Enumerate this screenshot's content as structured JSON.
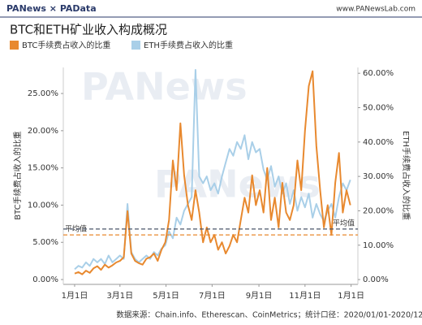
{
  "header": {
    "logo": "PANews × PAData",
    "site": "www.PANewsLab.com"
  },
  "chart_data": {
    "type": "line",
    "title": "BTC和ETH矿业收入构成概况",
    "watermark": "PANews",
    "y_label": "BTC手续费占收入的比重",
    "y2_label": "ETH手续费占收入的比重",
    "source": "数据来源：Chain.info、Etherescan、CoinMetrics；统计口径：2020/01/01-2020/12/31",
    "xlim": [
      -15,
      375
    ],
    "xticks": [
      {
        "value": 0,
        "label": "1月1日"
      },
      {
        "value": 60,
        "label": "3月1日"
      },
      {
        "value": 121,
        "label": "5月1日"
      },
      {
        "value": 182,
        "label": "7月1日"
      },
      {
        "value": 244,
        "label": "9月1日"
      },
      {
        "value": 305,
        "label": "11月1日"
      },
      {
        "value": 366,
        "label": "1月1日"
      }
    ],
    "ylim": [
      -0.65,
      28.5
    ],
    "yticks": [
      {
        "value": 0,
        "label": "0.00%"
      },
      {
        "value": 5,
        "label": "5.00%"
      },
      {
        "value": 10,
        "label": "10.00%"
      },
      {
        "value": 15,
        "label": "15.00%"
      },
      {
        "value": 20,
        "label": "20.00%"
      },
      {
        "value": 25,
        "label": "25.00%"
      }
    ],
    "y2lim": [
      -1.4,
      61.7
    ],
    "y2ticks": [
      {
        "value": 0,
        "label": "0.00%"
      },
      {
        "value": 10,
        "label": "10.00%"
      },
      {
        "value": 20,
        "label": "20.00%"
      },
      {
        "value": 30,
        "label": "30.00%"
      },
      {
        "value": 40,
        "label": "40.00%"
      },
      {
        "value": 50,
        "label": "50.00%"
      },
      {
        "value": 60,
        "label": "60.00%"
      }
    ],
    "x": [
      0,
      5,
      10,
      15,
      20,
      25,
      30,
      35,
      40,
      45,
      50,
      55,
      60,
      65,
      70,
      75,
      80,
      85,
      90,
      95,
      100,
      105,
      110,
      115,
      120,
      125,
      130,
      135,
      140,
      145,
      150,
      155,
      160,
      165,
      170,
      175,
      180,
      185,
      190,
      195,
      200,
      205,
      210,
      215,
      220,
      225,
      230,
      235,
      240,
      245,
      250,
      255,
      260,
      265,
      270,
      275,
      280,
      285,
      290,
      295,
      300,
      305,
      310,
      315,
      320,
      325,
      330,
      335,
      340,
      345,
      350,
      355,
      360,
      365
    ],
    "series": [
      {
        "name": "ETH手续费占收入的比重",
        "color": "#a9cfe8",
        "axis": "y2",
        "values": [
          3,
          4,
          3.5,
          5,
          4,
          6,
          5,
          6,
          4.5,
          7,
          5,
          6,
          7,
          6,
          22,
          8,
          6,
          5,
          6,
          7,
          6,
          8,
          7,
          9,
          10,
          14,
          12,
          18,
          16,
          20,
          22,
          24,
          61,
          30,
          28,
          30,
          26,
          28,
          25,
          30,
          34,
          38,
          36,
          40,
          38,
          42,
          35,
          40,
          37,
          38,
          32,
          29,
          33,
          27,
          30,
          25,
          28,
          22,
          26,
          20,
          24,
          21,
          25,
          18,
          22,
          19,
          17,
          20,
          22,
          18,
          24,
          28,
          26,
          29
        ]
      },
      {
        "name": "BTC手续费占收入的比重",
        "color": "#e8892f",
        "values": [
          0.8,
          1.0,
          0.7,
          1.2,
          0.9,
          1.5,
          1.8,
          1.3,
          2.0,
          1.6,
          1.9,
          2.3,
          2.5,
          3,
          9.2,
          3.5,
          2.5,
          2.2,
          2.0,
          2.8,
          3.0,
          3.5,
          2.5,
          4.0,
          5.0,
          8.0,
          16.0,
          12.0,
          21.0,
          14.0,
          10,
          8,
          12,
          9,
          5,
          7,
          5,
          6,
          4,
          5,
          3.5,
          4.5,
          6,
          5,
          8,
          11,
          9,
          14,
          10,
          12,
          9,
          15,
          8,
          11,
          7,
          13,
          9,
          8,
          10,
          16,
          12,
          20,
          26,
          28,
          18,
          12,
          7,
          10,
          6,
          13,
          17,
          9,
          12,
          10
        ]
      }
    ],
    "averages": [
      {
        "label": "平均值",
        "value": 6.0,
        "color": "#e8892f"
      },
      {
        "label": "平均值",
        "value": 14.7,
        "axis": "y2",
        "color": "#4a5568"
      }
    ]
  }
}
